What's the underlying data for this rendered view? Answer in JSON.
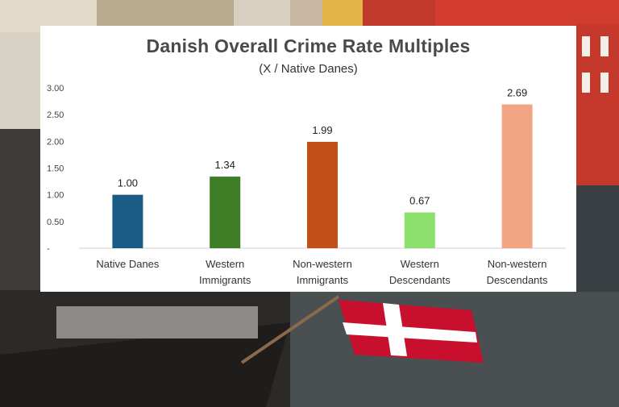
{
  "chart_data": {
    "type": "bar",
    "title": "Danish Overall Crime Rate Multiples",
    "subtitle": "(X / Native Danes)",
    "categories": [
      [
        "Native Danes"
      ],
      [
        "Western",
        "Immigrants"
      ],
      [
        "Non-western",
        "Immigrants"
      ],
      [
        "Western",
        "Descendants"
      ],
      [
        "Non-western",
        "Descendants"
      ]
    ],
    "values": [
      1.0,
      1.34,
      1.99,
      0.67,
      2.69
    ],
    "value_labels": [
      "1.00",
      "1.34",
      "1.99",
      "0.67",
      "2.69"
    ],
    "bar_colors": [
      "#1b5c86",
      "#3c7d25",
      "#c24f17",
      "#8ee06e",
      "#f2a582"
    ],
    "y_ticks": [
      {
        "value": 0,
        "label": "-"
      },
      {
        "value": 0.5,
        "label": "0.50"
      },
      {
        "value": 1.0,
        "label": "1.00"
      },
      {
        "value": 1.5,
        "label": "1.50"
      },
      {
        "value": 2.0,
        "label": "2.00"
      },
      {
        "value": 2.5,
        "label": "2.50"
      },
      {
        "value": 3.0,
        "label": "3.00"
      }
    ],
    "ylim": [
      0,
      3.0
    ],
    "xlabel": "",
    "ylabel": "",
    "grid": false,
    "legend": "none",
    "background": "photo of Copenhagen harbour with Danish flag"
  }
}
